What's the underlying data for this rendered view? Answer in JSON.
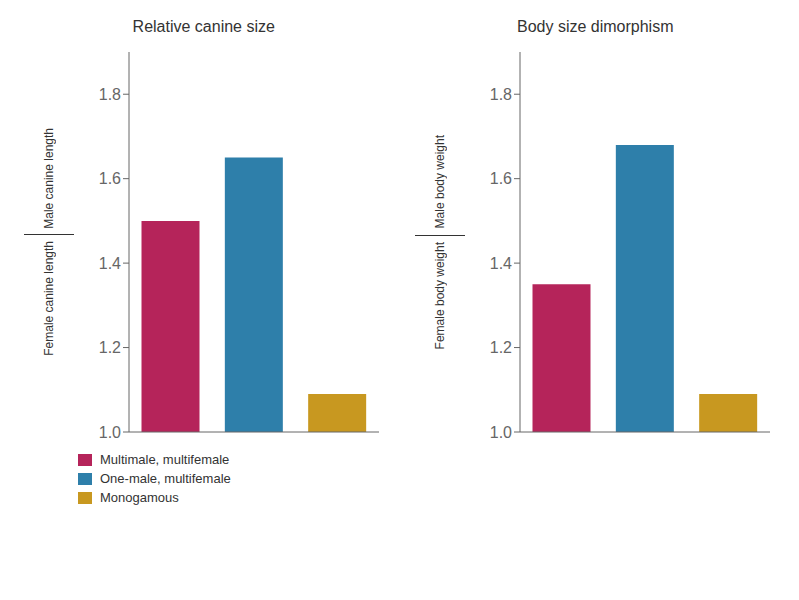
{
  "chart_data": [
    {
      "type": "bar",
      "title": "Relative canine size",
      "ylabel": [
        "Male canine length",
        "Female canine length"
      ],
      "categories": [
        "Multimale, multifemale",
        "One-male, multifemale",
        "Monogamous"
      ],
      "values": [
        1.5,
        1.65,
        1.09
      ],
      "colors": [
        "#b5245a",
        "#2e7faa",
        "#c89820"
      ],
      "ylim": [
        1.0,
        1.9
      ],
      "yticks": [
        {
          "value": 1.0,
          "label": "1.0"
        },
        1.2,
        1.4,
        1.6,
        1.8
      ],
      "grid": false,
      "legend": "bottom",
      "tick_labels": "y"
    },
    {
      "type": "bar",
      "title": "Body size dimorphism",
      "ylabel": [
        "Male body weight",
        "Female body weight"
      ],
      "categories": [
        "Multimale, multifemale",
        "One-male, multifemale",
        "Monogamous"
      ],
      "values": [
        1.35,
        1.68,
        1.09
      ],
      "colors": [
        "#b5245a",
        "#2e7faa",
        "#c89820"
      ],
      "ylim": [
        1.0,
        1.9
      ],
      "yticks": [
        {
          "value": 1.0,
          "label": "1.0"
        },
        1.2,
        1.4,
        1.6,
        1.8
      ],
      "grid": false,
      "legend": "bottom",
      "tick_labels": "y"
    }
  ]
}
